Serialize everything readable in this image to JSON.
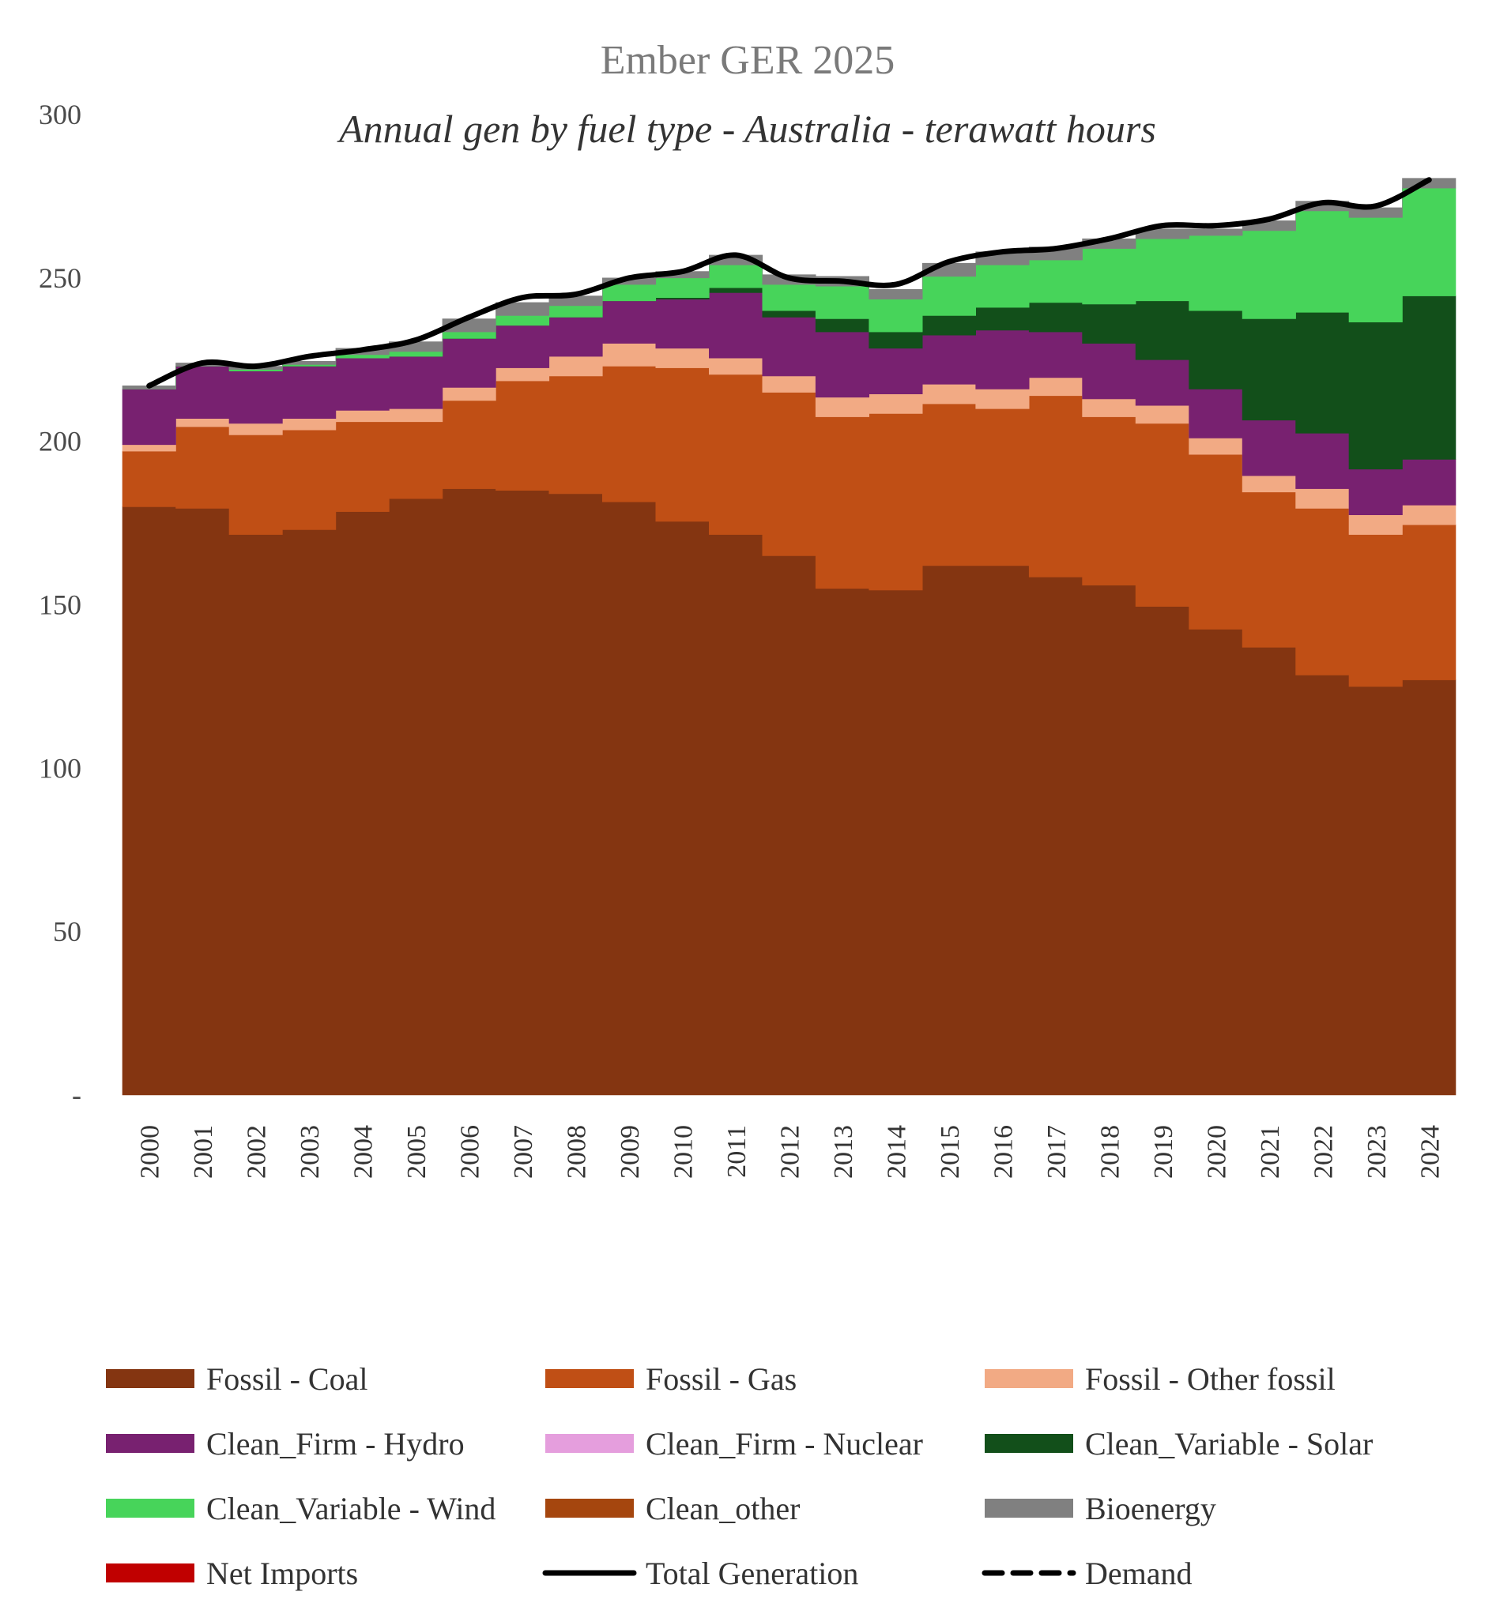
{
  "chart_data": {
    "type": "area",
    "title": "Ember GER 2025",
    "subtitle": "Annual gen by fuel type - Australia - terawatt hours",
    "xlabel": "",
    "ylabel": "",
    "ylim": [
      0,
      300
    ],
    "y_ticks": [
      {
        "value": 0,
        "label": "-"
      },
      {
        "value": 50,
        "label": "50"
      },
      {
        "value": 100,
        "label": "100"
      },
      {
        "value": 150,
        "label": "150"
      },
      {
        "value": 200,
        "label": "200"
      },
      {
        "value": 250,
        "label": "250"
      },
      {
        "value": 300,
        "label": "300"
      }
    ],
    "grid": false,
    "legend_position": "bottom",
    "stacking": "stacked",
    "x": [
      "2000",
      "2001",
      "2002",
      "2003",
      "2004",
      "2005",
      "2006",
      "2007",
      "2008",
      "2009",
      "2010",
      "2011",
      "2012",
      "2013",
      "2014",
      "2015",
      "2016",
      "2017",
      "2018",
      "2019",
      "2020",
      "2021",
      "2022",
      "2023",
      "2024"
    ],
    "series": [
      {
        "name": "Fossil - Coal",
        "color": "#843511",
        "values": [
          180,
          179.5,
          171.5,
          173,
          178.5,
          182.5,
          185.5,
          185,
          184,
          181.5,
          175.5,
          171.5,
          165,
          155,
          154.5,
          162,
          162,
          158.5,
          156,
          149.5,
          142.5,
          137,
          128.5,
          125,
          127
        ]
      },
      {
        "name": "Fossil - Gas",
        "color": "#C04F15",
        "values": [
          17,
          25,
          30.5,
          30.5,
          27.5,
          23.5,
          27,
          33.5,
          36,
          41.5,
          47,
          49,
          50,
          52.5,
          54,
          49.5,
          48,
          55.5,
          51.5,
          56,
          53.5,
          47.5,
          51,
          46.5,
          47.5
        ]
      },
      {
        "name": "Fossil - Other fossil",
        "color": "#F2AA84",
        "values": [
          2,
          2.5,
          3.5,
          3.5,
          3.5,
          4,
          4,
          4,
          6,
          7,
          6,
          5,
          5,
          6,
          6,
          6,
          6,
          5.5,
          5.5,
          5.5,
          5,
          5,
          6,
          6,
          6
        ]
      },
      {
        "name": "Clean_Firm - Hydro",
        "color": "#782170",
        "values": [
          17,
          16,
          16,
          16,
          16,
          16,
          15,
          13,
          12,
          13,
          15,
          20,
          18,
          20,
          14,
          15,
          18,
          14,
          17,
          14,
          15,
          17,
          17,
          14,
          14
        ]
      },
      {
        "name": "Clean_Firm - Nuclear",
        "color": "#E59EDD",
        "values": [
          0,
          0,
          0,
          0,
          0,
          0,
          0,
          0,
          0,
          0,
          0,
          0,
          0,
          0,
          0,
          0,
          0,
          0,
          0,
          0,
          0,
          0,
          0,
          0,
          0
        ]
      },
      {
        "name": "Clean_Variable - Solar",
        "color": "#124F1A",
        "values": [
          0,
          0,
          0,
          0,
          0,
          0,
          0,
          0,
          0,
          0,
          0.5,
          1.5,
          2,
          4,
          5,
          6,
          7,
          9,
          12,
          18,
          24,
          31,
          37,
          45,
          50
        ]
      },
      {
        "name": "Clean_Variable - Wind",
        "color": "#47D45A",
        "values": [
          0,
          0,
          0.5,
          0.5,
          1,
          1.5,
          2,
          3,
          3.5,
          5,
          6,
          7,
          8,
          10,
          10,
          12,
          13,
          13,
          17,
          19,
          23,
          27,
          31,
          32,
          33
        ]
      },
      {
        "name": "Clean_other",
        "color": "#A5460E",
        "values": [
          0,
          0,
          0,
          0,
          0,
          0,
          0,
          0,
          0,
          0,
          0,
          0,
          0,
          0,
          0,
          0,
          0,
          0,
          0,
          0,
          0,
          0,
          0,
          0,
          0
        ]
      },
      {
        "name": "Bioenergy",
        "color": "#808080",
        "values": [
          1,
          1,
          1,
          1,
          2,
          3,
          4,
          4,
          3,
          2,
          2,
          3,
          3,
          3,
          3,
          4,
          4,
          4,
          3,
          3,
          2,
          3,
          3,
          3,
          3
        ]
      },
      {
        "name": "Net Imports",
        "color": "#C00000",
        "values": [
          0,
          0,
          0,
          0,
          0,
          0,
          0,
          0,
          0,
          0,
          0,
          0,
          0,
          0,
          0,
          0,
          0,
          0,
          0,
          0,
          0,
          0,
          0,
          0,
          0
        ]
      }
    ],
    "lines": [
      {
        "name": "Total Generation",
        "color": "#000000",
        "style": "solid",
        "values": [
          217,
          224,
          223,
          226,
          228,
          231,
          238,
          244,
          245,
          250,
          252,
          257,
          250,
          249,
          248,
          255,
          258,
          259,
          262,
          266,
          266,
          268,
          273,
          272,
          280
        ]
      },
      {
        "name": "Demand",
        "color": "#000000",
        "style": "dashed",
        "values": []
      }
    ],
    "legend": [
      {
        "label": "Fossil - Coal",
        "color": "#843511",
        "kind": "swatch"
      },
      {
        "label": "Fossil - Gas",
        "color": "#C04F15",
        "kind": "swatch"
      },
      {
        "label": "Fossil - Other fossil",
        "color": "#F2AA84",
        "kind": "swatch"
      },
      {
        "label": "Clean_Firm - Hydro",
        "color": "#782170",
        "kind": "swatch"
      },
      {
        "label": "Clean_Firm - Nuclear",
        "color": "#E59EDD",
        "kind": "swatch"
      },
      {
        "label": "Clean_Variable - Solar",
        "color": "#124F1A",
        "kind": "swatch"
      },
      {
        "label": "Clean_Variable - Wind",
        "color": "#47D45A",
        "kind": "swatch"
      },
      {
        "label": "Clean_other",
        "color": "#A5460E",
        "kind": "swatch"
      },
      {
        "label": "Bioenergy",
        "color": "#808080",
        "kind": "swatch"
      },
      {
        "label": "Net Imports",
        "color": "#C00000",
        "kind": "swatch"
      },
      {
        "label": "Total Generation",
        "color": "#000000",
        "kind": "line"
      },
      {
        "label": "Demand",
        "color": "#000000",
        "kind": "dashed"
      }
    ]
  }
}
